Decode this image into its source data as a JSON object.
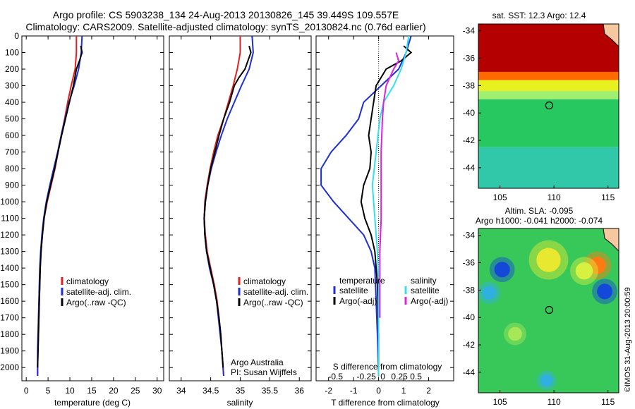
{
  "header": {
    "title_line1": "Argo profile: CS 5903238_134 24-Aug-2013 20130826_145 39.449S 109.557E",
    "title_line2": "Climatology: CARS2009. Satellite-adjusted climatology: synTS_20130824.nc (0.76d earlier)"
  },
  "footer": {
    "note": "©IMOS 31-Aug-2013 20:00:59"
  },
  "colors": {
    "climatology": "#e32020",
    "satellite": "#1f2fd6",
    "argo": "#000000",
    "satellite_diff": "#33e0ee",
    "argo_adj": "#e020e0"
  },
  "chart_data": [
    {
      "type": "line",
      "xlabel": "temperature (deg C)",
      "ylabel": "",
      "xlim": [
        -1,
        31.5
      ],
      "ylim": [
        2080,
        0
      ],
      "xticks": [
        0,
        5,
        10,
        15,
        20,
        25,
        30
      ],
      "yticks": [
        0,
        100,
        200,
        300,
        400,
        500,
        600,
        700,
        800,
        900,
        1000,
        1100,
        1200,
        1300,
        1400,
        1500,
        1600,
        1700,
        1800,
        1900,
        2000
      ],
      "legend": {
        "placement": "lower-right",
        "entries": [
          "climatology",
          "satellite-adj. clim.",
          "Argo(..raw -QC)"
        ]
      },
      "series": [
        {
          "name": "climatology",
          "color": "#e32020",
          "points": [
            [
              11.5,
              0
            ],
            [
              11.5,
              100
            ],
            [
              11.2,
              200
            ],
            [
              10.3,
              300
            ],
            [
              9.5,
              400
            ],
            [
              8.8,
              500
            ],
            [
              8.0,
              600
            ],
            [
              7.3,
              700
            ],
            [
              6.6,
              800
            ],
            [
              5.7,
              900
            ],
            [
              4.8,
              1000
            ],
            [
              4.1,
              1100
            ],
            [
              3.7,
              1200
            ],
            [
              3.4,
              1300
            ],
            [
              3.2,
              1400
            ],
            [
              3.1,
              1500
            ],
            [
              3.0,
              1600
            ],
            [
              2.9,
              1700
            ],
            [
              2.8,
              1800
            ],
            [
              2.7,
              1900
            ],
            [
              2.6,
              2000
            ],
            [
              2.6,
              2050
            ]
          ]
        },
        {
          "name": "satellite-adj. clim.",
          "color": "#1f2fd6",
          "points": [
            [
              12.8,
              0
            ],
            [
              12.6,
              100
            ],
            [
              12.0,
              200
            ],
            [
              11.0,
              300
            ],
            [
              9.8,
              400
            ],
            [
              8.9,
              500
            ],
            [
              8.0,
              600
            ],
            [
              7.2,
              700
            ],
            [
              6.3,
              800
            ],
            [
              5.4,
              900
            ],
            [
              4.6,
              1000
            ],
            [
              4.0,
              1100
            ],
            [
              3.6,
              1200
            ],
            [
              3.3,
              1300
            ],
            [
              3.1,
              1400
            ],
            [
              3.0,
              1500
            ],
            [
              2.9,
              1600
            ],
            [
              2.8,
              1700
            ],
            [
              2.7,
              1800
            ],
            [
              2.6,
              1900
            ],
            [
              2.6,
              2000
            ],
            [
              2.6,
              2050
            ]
          ]
        },
        {
          "name": "Argo(..raw -QC)",
          "color": "#000000",
          "points": [
            [
              12.5,
              60
            ],
            [
              12.8,
              100
            ],
            [
              12.2,
              150
            ],
            [
              11.5,
              200
            ],
            [
              10.8,
              300
            ],
            [
              9.9,
              400
            ],
            [
              9.0,
              500
            ],
            [
              8.1,
              600
            ],
            [
              7.3,
              700
            ],
            [
              6.5,
              800
            ],
            [
              5.6,
              900
            ],
            [
              4.7,
              1000
            ],
            [
              4.1,
              1100
            ],
            [
              3.7,
              1200
            ],
            [
              3.4,
              1300
            ],
            [
              3.2,
              1400
            ],
            [
              3.1,
              1500
            ],
            [
              3.0,
              1600
            ],
            [
              2.9,
              1700
            ],
            [
              2.8,
              1800
            ],
            [
              2.7,
              1900
            ],
            [
              2.6,
              2000
            ]
          ]
        }
      ]
    },
    {
      "type": "line",
      "xlabel": "salinity",
      "ylabel": "",
      "xlim": [
        33.8,
        36.2
      ],
      "ylim": [
        2080,
        0
      ],
      "xticks": [
        34,
        34.5,
        35,
        35.5,
        36
      ],
      "legend": {
        "placement": "lower-right",
        "entries": [
          "climatology",
          "satellite-adj. clim.",
          "Argo(..raw -QC)"
        ]
      },
      "annotation": [
        "Argo Australia",
        "PI: Susan Wijffels"
      ],
      "series": [
        {
          "name": "climatology",
          "color": "#e32020",
          "points": [
            [
              35.0,
              0
            ],
            [
              35.0,
              100
            ],
            [
              34.95,
              200
            ],
            [
              34.88,
              300
            ],
            [
              34.8,
              400
            ],
            [
              34.72,
              500
            ],
            [
              34.62,
              600
            ],
            [
              34.55,
              700
            ],
            [
              34.49,
              800
            ],
            [
              34.44,
              900
            ],
            [
              34.4,
              1000
            ],
            [
              34.39,
              1100
            ],
            [
              34.41,
              1200
            ],
            [
              34.44,
              1300
            ],
            [
              34.5,
              1400
            ],
            [
              34.56,
              1500
            ],
            [
              34.61,
              1600
            ],
            [
              34.64,
              1700
            ],
            [
              34.67,
              1800
            ],
            [
              34.69,
              1900
            ],
            [
              34.71,
              2000
            ],
            [
              34.72,
              2050
            ]
          ]
        },
        {
          "name": "satellite-adj. clim.",
          "color": "#1f2fd6",
          "points": [
            [
              35.2,
              0
            ],
            [
              35.22,
              100
            ],
            [
              35.15,
              200
            ],
            [
              35.02,
              300
            ],
            [
              34.9,
              400
            ],
            [
              34.78,
              500
            ],
            [
              34.68,
              600
            ],
            [
              34.59,
              700
            ],
            [
              34.51,
              800
            ],
            [
              34.45,
              900
            ],
            [
              34.41,
              1000
            ],
            [
              34.39,
              1100
            ],
            [
              34.4,
              1200
            ],
            [
              34.43,
              1300
            ],
            [
              34.48,
              1400
            ],
            [
              34.55,
              1500
            ],
            [
              34.6,
              1600
            ],
            [
              34.63,
              1700
            ],
            [
              34.66,
              1800
            ],
            [
              34.69,
              1900
            ],
            [
              34.71,
              2000
            ],
            [
              34.72,
              2050
            ]
          ]
        },
        {
          "name": "Argo(..raw -QC)",
          "color": "#000000",
          "points": [
            [
              35.15,
              60
            ],
            [
              35.18,
              100
            ],
            [
              35.08,
              200
            ],
            [
              34.98,
              250
            ],
            [
              34.9,
              300
            ],
            [
              34.82,
              400
            ],
            [
              34.72,
              500
            ],
            [
              34.64,
              600
            ],
            [
              34.57,
              700
            ],
            [
              34.5,
              800
            ],
            [
              34.45,
              900
            ],
            [
              34.41,
              1000
            ],
            [
              34.39,
              1100
            ],
            [
              34.4,
              1200
            ],
            [
              34.43,
              1300
            ],
            [
              34.49,
              1400
            ],
            [
              34.55,
              1500
            ],
            [
              34.6,
              1600
            ],
            [
              34.64,
              1700
            ],
            [
              34.67,
              1800
            ],
            [
              34.69,
              1900
            ],
            [
              34.71,
              2000
            ]
          ]
        }
      ]
    },
    {
      "type": "line",
      "xlabel": "T difference from climatology",
      "ylabel": "",
      "xlim": [
        -2.5,
        3.0
      ],
      "ylim": [
        2080,
        0
      ],
      "xticks": [
        -2,
        -1,
        0,
        1,
        2
      ],
      "secondary_xlabel": "S difference from climatology",
      "secondary_xticks": [
        "-0.5",
        "-0.25",
        "0",
        "0.25",
        "0.5"
      ],
      "legend": {
        "placement": "lower-center",
        "headers": [
          "temperature",
          "salinity"
        ],
        "entries": [
          "satellite",
          "Argo(-adj)",
          "satellite",
          "Argo(-adj)"
        ]
      },
      "series": [
        {
          "name": "satellite",
          "color": "#1f2fd6",
          "points": [
            [
              1.3,
              0
            ],
            [
              1.1,
              100
            ],
            [
              0.8,
              200
            ],
            [
              0.1,
              300
            ],
            [
              -0.6,
              400
            ],
            [
              -0.8,
              500
            ],
            [
              -1.3,
              600
            ],
            [
              -1.9,
              700
            ],
            [
              -2.3,
              800
            ],
            [
              -2.3,
              900
            ],
            [
              -1.8,
              1000
            ],
            [
              -1.2,
              1100
            ],
            [
              -0.6,
              1200
            ],
            [
              -0.3,
              1300
            ],
            [
              -0.15,
              1400
            ],
            [
              -0.1,
              1600
            ],
            [
              -0.05,
              1800
            ],
            [
              0,
              2050
            ]
          ]
        },
        {
          "name": "Argo(-adj)",
          "color": "#000000",
          "points": [
            [
              1.0,
              60
            ],
            [
              1.3,
              100
            ],
            [
              0.9,
              150
            ],
            [
              0.3,
              200
            ],
            [
              -0.1,
              300
            ],
            [
              -0.2,
              400
            ],
            [
              -0.3,
              500
            ],
            [
              -0.4,
              600
            ],
            [
              -0.3,
              700
            ],
            [
              -0.35,
              800
            ],
            [
              -0.6,
              900
            ],
            [
              -0.7,
              1000
            ],
            [
              -0.55,
              1100
            ],
            [
              -0.3,
              1200
            ],
            [
              -0.15,
              1300
            ],
            [
              -0.05,
              1500
            ],
            [
              0,
              1800
            ],
            [
              0,
              2000
            ]
          ]
        },
        {
          "name": "satellite",
          "color": "#33e0ee",
          "points": [
            [
              1.2,
              0
            ],
            [
              1.1,
              100
            ],
            [
              0.9,
              200
            ],
            [
              0.6,
              300
            ],
            [
              0.2,
              400
            ],
            [
              0.05,
              500
            ],
            [
              -0.1,
              700
            ],
            [
              -0.25,
              900
            ],
            [
              -0.15,
              1100
            ],
            [
              -0.05,
              1300
            ],
            [
              0,
              1500
            ],
            [
              0,
              2050
            ]
          ]
        },
        {
          "name": "Argo(-adj)",
          "color": "#e020e0",
          "points": [
            [
              0.7,
              100
            ],
            [
              0.8,
              150
            ],
            [
              0.6,
              200
            ],
            [
              0.3,
              300
            ],
            [
              0.2,
              400
            ],
            [
              0.15,
              500
            ],
            [
              0.1,
              700
            ],
            [
              0.1,
              900
            ],
            [
              0.1,
              1100
            ],
            [
              0.05,
              1300
            ],
            [
              0.05,
              1500
            ],
            [
              0.05,
              1700
            ]
          ]
        }
      ]
    },
    {
      "type": "heatmap",
      "title": "sat. SST: 12.3 Argo: 12.4",
      "xlim": [
        103,
        116
      ],
      "ylim": [
        -45.5,
        -33.5
      ],
      "xticks": [
        105,
        110,
        115
      ],
      "yticks": [
        -34,
        -36,
        -38,
        -40,
        -42,
        -44
      ],
      "argo_position": [
        109.557,
        -39.449
      ],
      "bands": [
        {
          "from": -33.5,
          "to": -37.0,
          "color": "#b50000"
        },
        {
          "from": -37.0,
          "to": -37.6,
          "color": "#ff6a00"
        },
        {
          "from": -37.6,
          "to": -38.4,
          "color": "#e8f020"
        },
        {
          "from": -38.4,
          "to": -39.0,
          "color": "#9ff070"
        },
        {
          "from": -39.0,
          "to": -42.5,
          "color": "#28c860"
        },
        {
          "from": -42.5,
          "to": -45.5,
          "color": "#30c8a8"
        }
      ]
    },
    {
      "type": "heatmap",
      "title": [
        "Altim. SLA: -0.095",
        "Argo h1000: -0.041 h2000: -0.074"
      ],
      "xlim": [
        103,
        116
      ],
      "ylim": [
        -45.5,
        -33.5
      ],
      "xticks": [
        105,
        110,
        115
      ],
      "yticks": [
        -34,
        -36,
        -38,
        -40,
        -42,
        -44
      ],
      "argo_position": [
        109.557,
        -39.449
      ],
      "background": "#38c85a",
      "blobs": [
        {
          "x": 105.2,
          "y": -36.5,
          "r": 0.9,
          "color": "#1448d8"
        },
        {
          "x": 114.7,
          "y": -38.1,
          "r": 0.9,
          "color": "#1448d8"
        },
        {
          "x": 104.0,
          "y": -38.2,
          "r": 0.8,
          "color": "#30b0e0"
        },
        {
          "x": 109.3,
          "y": -44.6,
          "r": 0.7,
          "color": "#30b0e0"
        },
        {
          "x": 114.0,
          "y": -36.2,
          "r": 1.0,
          "color": "#ff7a10"
        },
        {
          "x": 109.5,
          "y": -35.8,
          "r": 1.4,
          "color": "#e8e830"
        },
        {
          "x": 112.8,
          "y": -36.6,
          "r": 1.0,
          "color": "#d8f040"
        },
        {
          "x": 106.4,
          "y": -41.2,
          "r": 0.8,
          "color": "#a8e858"
        }
      ]
    }
  ]
}
